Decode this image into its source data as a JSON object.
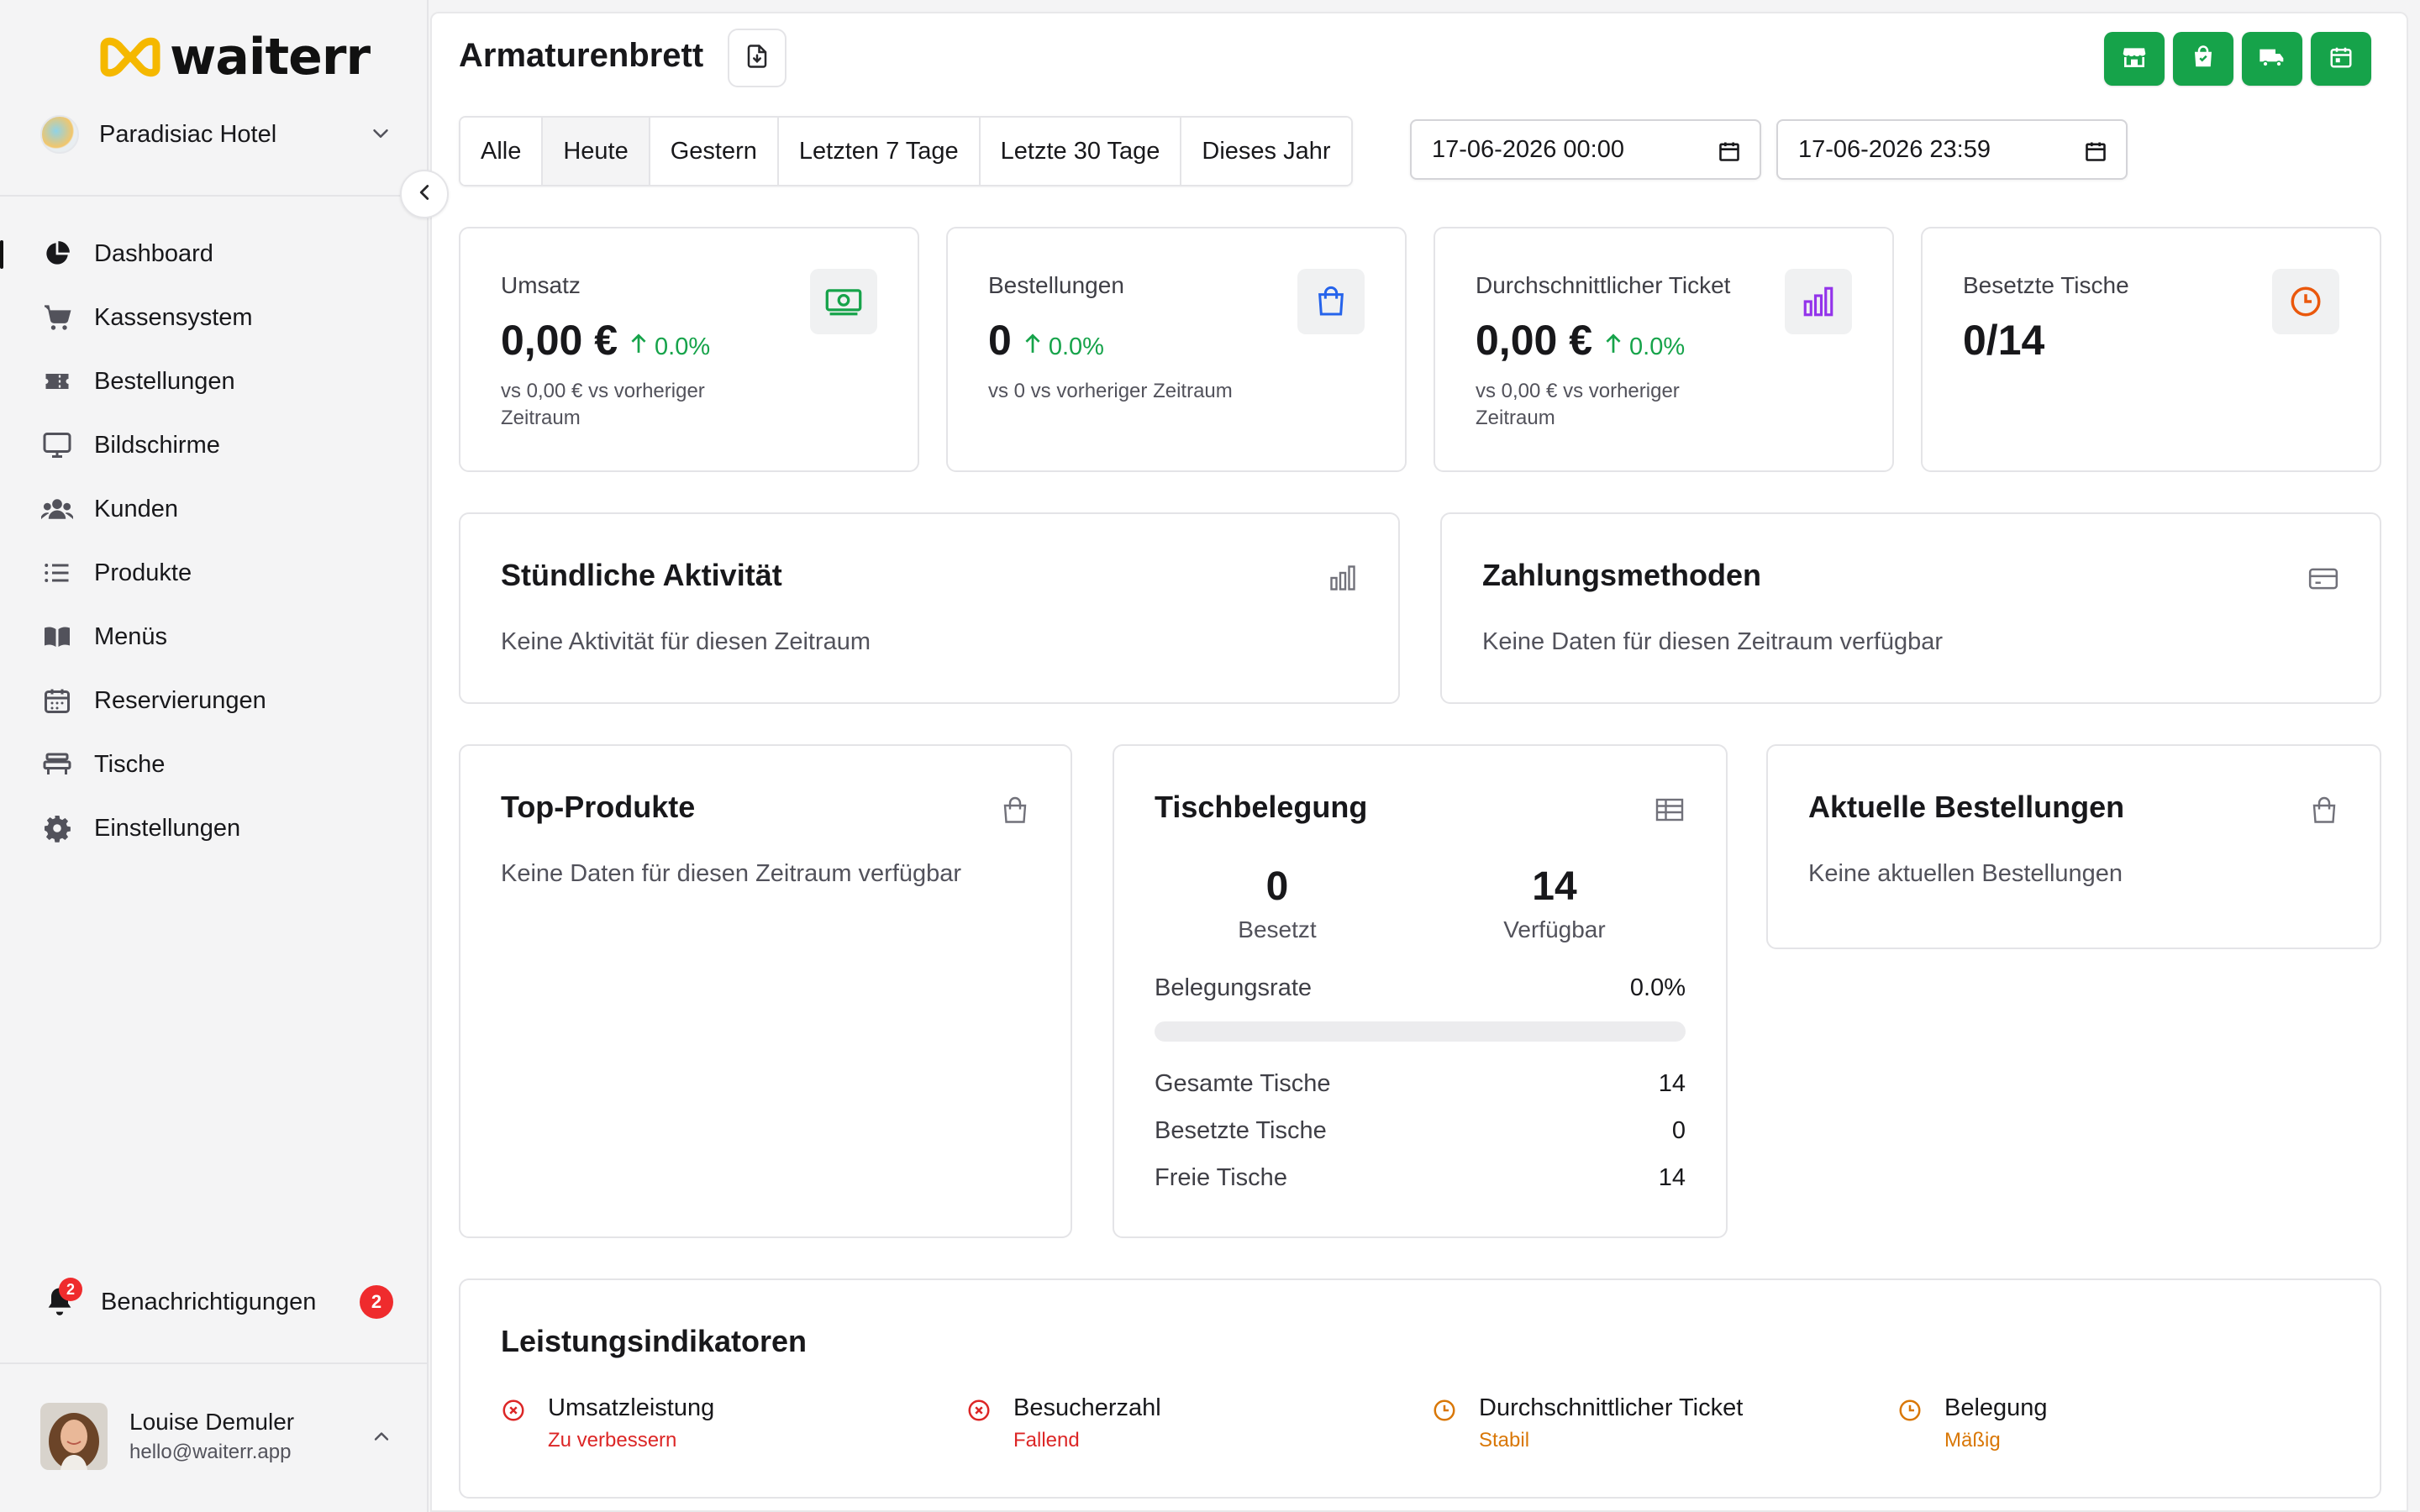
{
  "brand": {
    "name": "waiterr"
  },
  "hotel": {
    "name": "Paradisiac Hotel"
  },
  "nav": [
    {
      "label": "Dashboard",
      "icon": "pie-chart-icon"
    },
    {
      "label": "Kassensystem",
      "icon": "cart-icon"
    },
    {
      "label": "Bestellungen",
      "icon": "ticket-icon"
    },
    {
      "label": "Bildschirme",
      "icon": "monitor-icon"
    },
    {
      "label": "Kunden",
      "icon": "users-icon"
    },
    {
      "label": "Produkte",
      "icon": "list-icon"
    },
    {
      "label": "Menüs",
      "icon": "book-icon"
    },
    {
      "label": "Reservierungen",
      "icon": "calendar-icon"
    },
    {
      "label": "Tische",
      "icon": "table-icon"
    },
    {
      "label": "Einstellungen",
      "icon": "gear-icon"
    }
  ],
  "notifications": {
    "label": "Benachrichtigungen",
    "badge": "2",
    "count": "2"
  },
  "user": {
    "name": "Louise Demuler",
    "email": "hello@waiterr.app"
  },
  "header": {
    "title": "Armaturenbrett"
  },
  "periods": [
    "Alle",
    "Heute",
    "Gestern",
    "Letzten 7 Tage",
    "Letzte 30 Tage",
    "Dieses Jahr"
  ],
  "active_period": "Heute",
  "date_from": "17-06-2026 00:00",
  "date_to": "17-06-2026 23:59",
  "colors": {
    "green": "#16a34a",
    "red": "#dc2626",
    "amber": "#d97706",
    "purple": "#9333ea",
    "blue": "#2563eb",
    "orange": "#ea580c"
  },
  "kpis": [
    {
      "label": "Umsatz",
      "value": "0,00 €",
      "delta": "0.0%",
      "sub": "vs 0,00 € vs vorheriger Zeitraum",
      "icon": "money-icon"
    },
    {
      "label": "Bestellungen",
      "value": "0",
      "delta": "0.0%",
      "sub": "vs 0 vs vorheriger Zeitraum",
      "icon": "shopping-bag-icon"
    },
    {
      "label": "Durchschnittlicher Ticket",
      "value": "0,00 €",
      "delta": "0.0%",
      "sub": "vs 0,00 € vs vorheriger Zeitraum",
      "icon": "bar-chart-icon"
    },
    {
      "label": "Besetzte Tische",
      "value": "0/14",
      "icon": "clock-icon"
    }
  ],
  "hourly": {
    "title": "Stündliche Aktivität",
    "empty": "Keine Aktivität für diesen Zeitraum"
  },
  "payments": {
    "title": "Zahlungsmethoden",
    "empty": "Keine Daten für diesen Zeitraum verfügbar"
  },
  "top_products": {
    "title": "Top-Produkte",
    "empty": "Keine Daten für diesen Zeitraum verfügbar"
  },
  "occupancy": {
    "title": "Tischbelegung",
    "occupied": "0",
    "occupied_label": "Besetzt",
    "available": "14",
    "available_label": "Verfügbar",
    "rate_label": "Belegungsrate",
    "rate": "0.0%",
    "rate_fraction": 0,
    "rows": [
      {
        "label": "Gesamte Tische",
        "value": "14"
      },
      {
        "label": "Besetzte Tische",
        "value": "0"
      },
      {
        "label": "Freie Tische",
        "value": "14"
      }
    ]
  },
  "recent_orders": {
    "title": "Aktuelle Bestellungen",
    "empty": "Keine aktuellen Bestellungen"
  },
  "indicators": {
    "title": "Leistungsindikatoren",
    "items": [
      {
        "title": "Umsatzleistung",
        "status": "Zu verbessern",
        "icon": "x-circle-icon"
      },
      {
        "title": "Besucherzahl",
        "status": "Fallend",
        "icon": "x-circle-icon"
      },
      {
        "title": "Durchschnittlicher Ticket",
        "status": "Stabil",
        "icon": "clock-icon"
      },
      {
        "title": "Belegung",
        "status": "Mäßig",
        "icon": "clock-icon"
      }
    ]
  }
}
